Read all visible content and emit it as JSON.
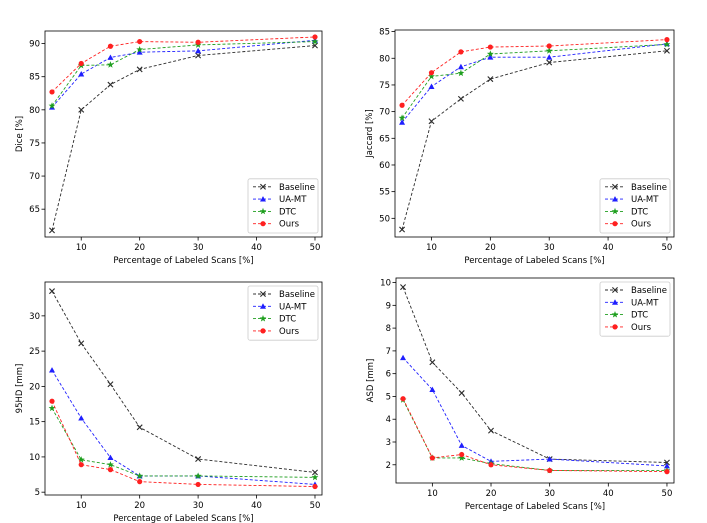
{
  "x_label": "Percentage of Labeled Scans [%]",
  "series_styles": [
    {
      "name": "Baseline",
      "color": "#2b2b2b",
      "marker": "x"
    },
    {
      "name": "UA-MT",
      "color": "#1f1fff",
      "marker": "triangle"
    },
    {
      "name": "DTC",
      "color": "#1f9f1f",
      "marker": "star"
    },
    {
      "name": "Ours",
      "color": "#ff2020",
      "marker": "circle"
    }
  ],
  "chart_data": [
    {
      "type": "line",
      "xlabel": "Percentage of Labeled Scans [%]",
      "ylabel": "Dice [%]",
      "x": [
        5,
        10,
        15,
        20,
        30,
        50
      ],
      "xlim": [
        3.8,
        51.2
      ],
      "ylim": [
        60.8,
        91.9
      ],
      "xticks": [
        10,
        20,
        30,
        40,
        50
      ],
      "yticks": [
        65,
        70,
        75,
        80,
        85,
        90
      ],
      "legend": "lower-right",
      "grid": false,
      "series": [
        {
          "name": "Baseline",
          "values": [
            61.8,
            80.0,
            83.8,
            86.1,
            88.2,
            89.7
          ]
        },
        {
          "name": "UA-MT",
          "values": [
            80.4,
            85.4,
            87.9,
            88.7,
            88.9,
            90.5
          ]
        },
        {
          "name": "DTC",
          "values": [
            80.6,
            86.7,
            86.8,
            89.1,
            89.8,
            90.3
          ]
        },
        {
          "name": "Ours",
          "values": [
            82.7,
            87.0,
            89.6,
            90.3,
            90.2,
            91.0
          ]
        }
      ]
    },
    {
      "type": "line",
      "xlabel": "Percentage of Labeled Scans [%]",
      "ylabel": "Jaccard [%]",
      "x": [
        5,
        10,
        15,
        20,
        30,
        50
      ],
      "xlim": [
        3.8,
        51.2
      ],
      "ylim": [
        46.5,
        85.3
      ],
      "xticks": [
        10,
        20,
        30,
        40,
        50
      ],
      "yticks": [
        50,
        55,
        60,
        65,
        70,
        75,
        80,
        85
      ],
      "legend": "lower-right",
      "grid": false,
      "series": [
        {
          "name": "Baseline",
          "values": [
            47.9,
            68.2,
            72.4,
            76.1,
            79.2,
            81.4
          ]
        },
        {
          "name": "UA-MT",
          "values": [
            68.0,
            74.7,
            78.4,
            80.2,
            80.2,
            82.7
          ]
        },
        {
          "name": "DTC",
          "values": [
            68.8,
            76.6,
            77.2,
            80.8,
            81.4,
            82.6
          ]
        },
        {
          "name": "Ours",
          "values": [
            71.2,
            77.3,
            81.2,
            82.1,
            82.3,
            83.5
          ]
        }
      ]
    },
    {
      "type": "line",
      "xlabel": "Percentage of Labeled Scans [%]",
      "ylabel": "95HD [mm]",
      "x": [
        5,
        10,
        15,
        20,
        30,
        50
      ],
      "xlim": [
        3.8,
        51.2
      ],
      "ylim": [
        4.6,
        34.8
      ],
      "xticks": [
        10,
        20,
        30,
        40,
        50
      ],
      "yticks": [
        5,
        10,
        15,
        20,
        25,
        30
      ],
      "legend": "upper-right",
      "grid": false,
      "series": [
        {
          "name": "Baseline",
          "values": [
            33.5,
            26.1,
            20.3,
            14.2,
            9.7,
            7.8
          ]
        },
        {
          "name": "UA-MT",
          "values": [
            22.3,
            15.5,
            9.9,
            7.3,
            7.3,
            6.1
          ]
        },
        {
          "name": "DTC",
          "values": [
            16.9,
            9.6,
            8.9,
            7.3,
            7.3,
            7.1
          ]
        },
        {
          "name": "Ours",
          "values": [
            17.9,
            8.9,
            8.2,
            6.5,
            6.1,
            5.8
          ]
        }
      ]
    },
    {
      "type": "line",
      "xlabel": "Percentage of Labeled Scans [%]",
      "ylabel": "ASD [mm]",
      "x": [
        5,
        10,
        15,
        20,
        30,
        50
      ],
      "xlim": [
        3.8,
        51.2
      ],
      "ylim": [
        1.2,
        10.2
      ],
      "xticks": [
        10,
        20,
        30,
        40,
        50
      ],
      "yticks": [
        2,
        3,
        4,
        5,
        6,
        7,
        8,
        9,
        10
      ],
      "legend": "upper-right",
      "grid": false,
      "series": [
        {
          "name": "Baseline",
          "values": [
            9.8,
            6.5,
            5.15,
            3.5,
            2.25,
            2.1
          ]
        },
        {
          "name": "UA-MT",
          "values": [
            6.7,
            5.3,
            2.85,
            2.15,
            2.25,
            1.95
          ]
        },
        {
          "name": "DTC",
          "values": [
            4.85,
            2.3,
            2.3,
            2.05,
            1.75,
            1.75
          ]
        },
        {
          "name": "Ours",
          "values": [
            4.9,
            2.3,
            2.45,
            2.0,
            1.75,
            1.7
          ]
        }
      ]
    }
  ]
}
